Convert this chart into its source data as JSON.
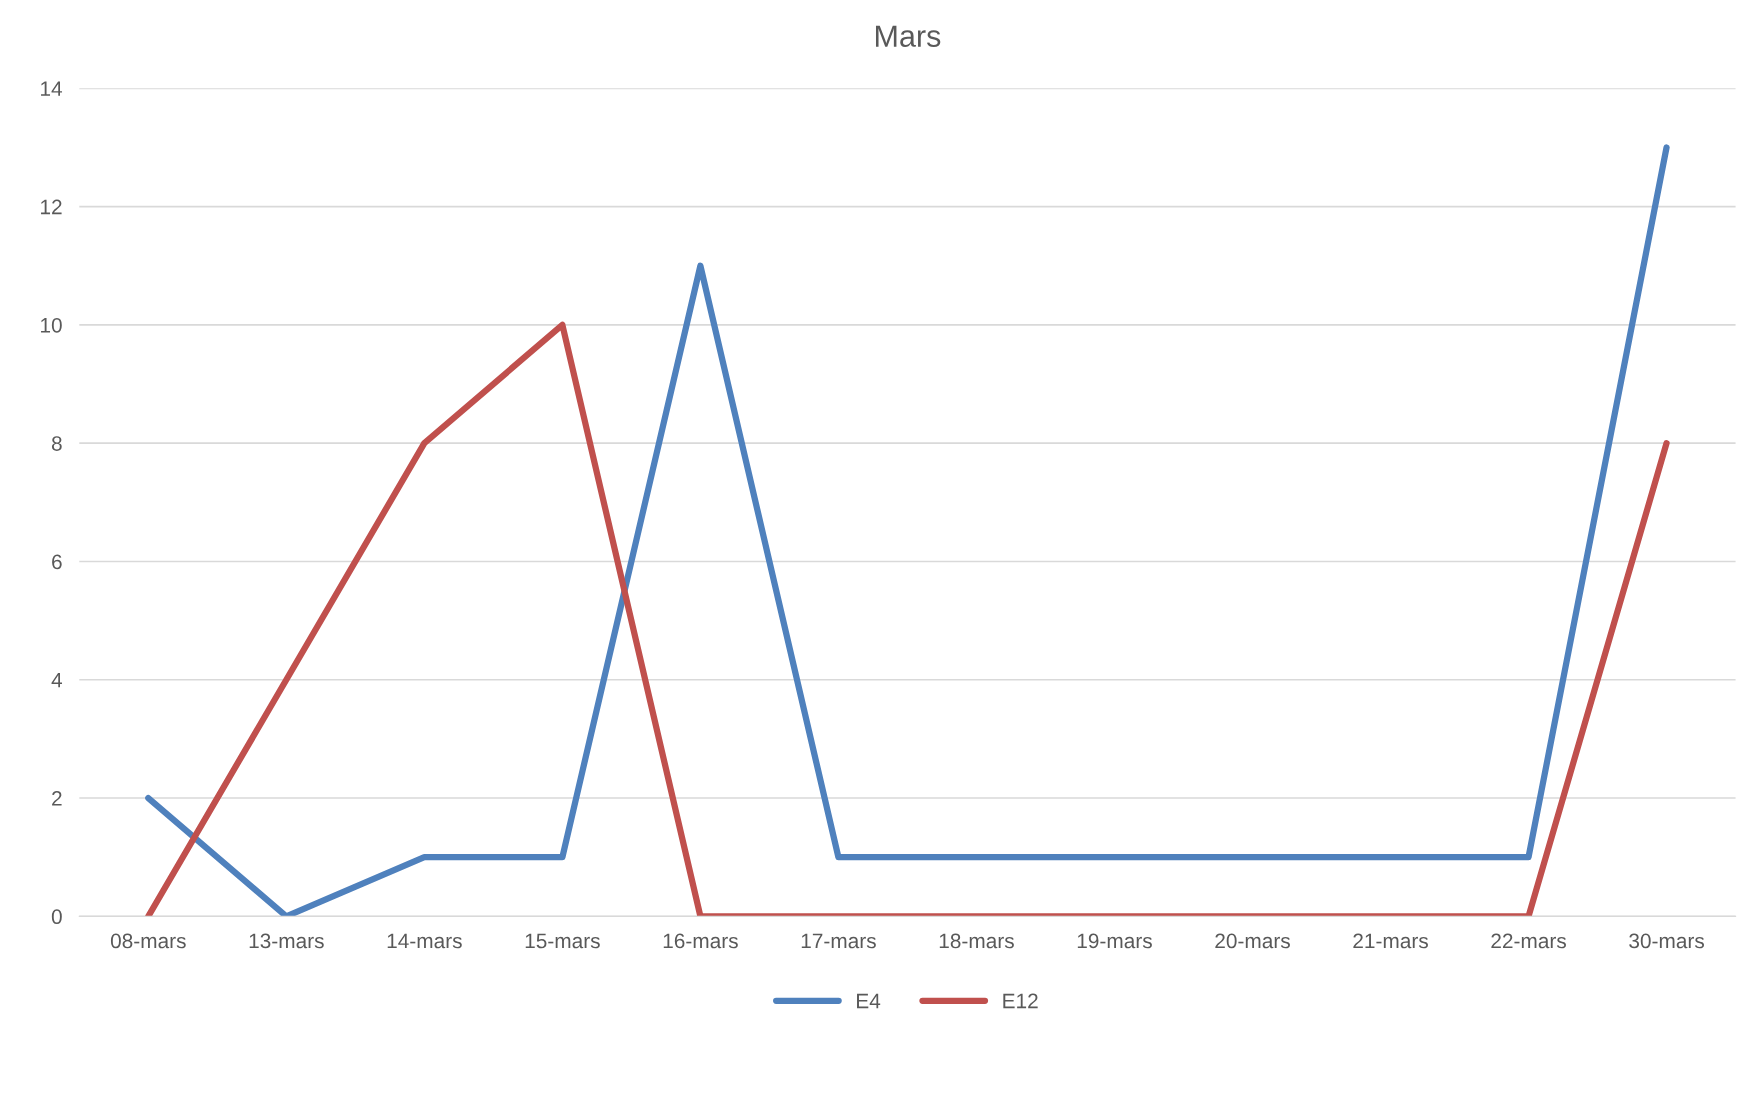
{
  "chart_data": {
    "type": "line",
    "title": "Mars",
    "categories": [
      "08-mars",
      "13-mars",
      "14-mars",
      "15-mars",
      "16-mars",
      "17-mars",
      "18-mars",
      "19-mars",
      "20-mars",
      "21-mars",
      "22-mars",
      "30-mars"
    ],
    "series": [
      {
        "name": "E4",
        "color": "#4f81bd",
        "values": [
          2,
          0,
          1,
          1,
          11,
          1,
          1,
          1,
          1,
          1,
          1,
          13
        ]
      },
      {
        "name": "E12",
        "color": "#c0504d",
        "values": [
          0,
          4,
          8,
          10,
          0,
          0,
          0,
          0,
          0,
          0,
          0,
          8
        ]
      }
    ],
    "ylim": [
      0,
      14
    ],
    "yticks": [
      0,
      2,
      4,
      6,
      8,
      10,
      12,
      14
    ],
    "grid": "y",
    "legend": "bottom",
    "marker": "none",
    "line_style": "solid"
  }
}
